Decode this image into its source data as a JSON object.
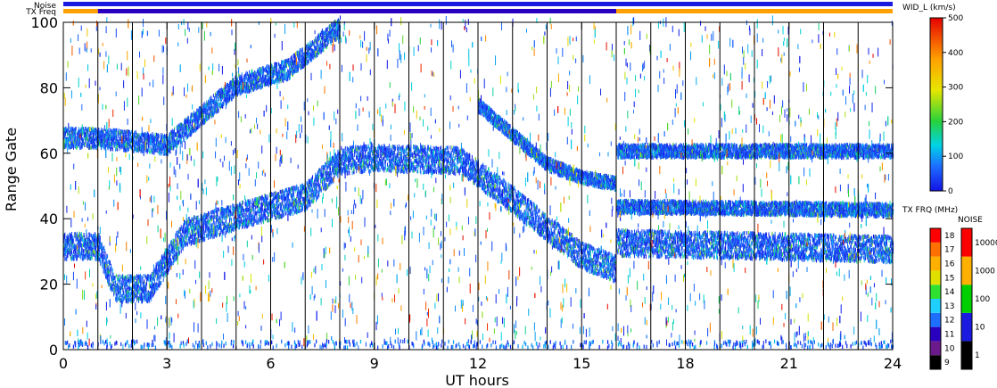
{
  "chart_data": {
    "type": "heatmap",
    "xlabel": "UT hours",
    "ylabel": "Range Gate",
    "xlim": [
      0,
      24
    ],
    "ylim": [
      0,
      100
    ],
    "x_ticks": [
      "0",
      "3",
      "6",
      "9",
      "12",
      "15",
      "18",
      "21",
      "24"
    ],
    "y_ticks": [
      "0",
      "20",
      "40",
      "60",
      "80",
      "100"
    ],
    "scan_boundaries_ut": [
      1,
      2,
      3,
      4,
      5,
      6,
      7,
      8,
      9,
      10,
      11,
      12,
      13,
      14,
      15,
      16,
      17,
      18,
      19,
      20,
      21,
      22,
      23
    ],
    "status_bars": {
      "noise_label": "Noise",
      "txfreq_label": "TX Freq",
      "noise_color": "#1a1ae0",
      "txfreq_segments": [
        {
          "from": 0,
          "to": 1,
          "color": "#ff9f00"
        },
        {
          "from": 1,
          "to": 16,
          "color": "#2a00c0"
        },
        {
          "from": 16,
          "to": 24,
          "color": "#ff9f00"
        }
      ]
    },
    "bands": [
      {
        "name": "lower",
        "points": [
          [
            0,
            31
          ],
          [
            1,
            31
          ],
          [
            1.5,
            18
          ],
          [
            2.5,
            18
          ],
          [
            3.5,
            35
          ],
          [
            5,
            40
          ],
          [
            7,
            46
          ],
          [
            8,
            57
          ],
          [
            9,
            58
          ],
          [
            11.5,
            57
          ],
          [
            13,
            45
          ],
          [
            15,
            28
          ],
          [
            16,
            24
          ],
          [
            16,
            32
          ],
          [
            24,
            30
          ]
        ],
        "half_width": 4
      },
      {
        "name": "upper",
        "points": [
          [
            0,
            64
          ],
          [
            1,
            64
          ],
          [
            3,
            62
          ],
          [
            5,
            80
          ],
          [
            6.5,
            85
          ],
          [
            8,
            98
          ]
        ],
        "half_width": 3
      },
      {
        "name": "descending",
        "points": [
          [
            12,
            74
          ],
          [
            13,
            65
          ],
          [
            14,
            56
          ],
          [
            15,
            52
          ],
          [
            16,
            50
          ]
        ],
        "half_width": 2
      },
      {
        "name": "gate-58",
        "points": [
          [
            16,
            60
          ],
          [
            24,
            60
          ]
        ],
        "half_width": 2
      },
      {
        "name": "gate-42",
        "points": [
          [
            16,
            43
          ],
          [
            24,
            42
          ]
        ],
        "half_width": 2
      }
    ],
    "colorbar_width": {
      "title": "WID_L (km/s)",
      "min": 0,
      "max": 500,
      "ticks": [
        "0",
        "100",
        "200",
        "300",
        "400",
        "500"
      ]
    },
    "colorbar_txfreq": {
      "title": "TX FRQ (MHz)",
      "ticks": [
        "9",
        "10",
        "11",
        "12",
        "13",
        "14",
        "15",
        "16",
        "17",
        "18"
      ],
      "colors": [
        "#000000",
        "#6a1a8a",
        "#2a00c0",
        "#1f6fff",
        "#1fd0ff",
        "#30e030",
        "#e0e000",
        "#ffb000",
        "#ff7000",
        "#ff0000"
      ]
    },
    "colorbar_noise": {
      "title": "NOISE",
      "ticks": [
        "1",
        "10",
        "100",
        "1000",
        "10000"
      ],
      "colors": [
        "#000000",
        "#1a1ae0",
        "#00d000",
        "#ffb000",
        "#ff0000"
      ]
    }
  }
}
